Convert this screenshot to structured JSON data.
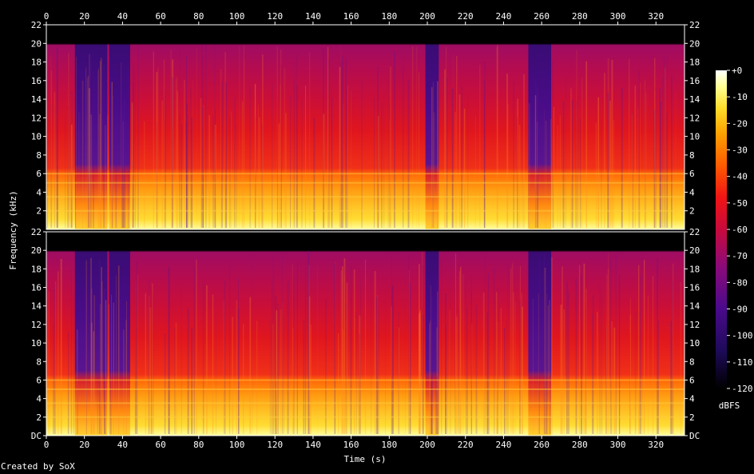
{
  "chart_data": {
    "type": "heatmap",
    "title": "",
    "xlabel": "Time (s)",
    "ylabel": "Frequency (kHz)",
    "x_ticks": [
      "0",
      "20",
      "40",
      "60",
      "80",
      "100",
      "120",
      "140",
      "160",
      "180",
      "200",
      "220",
      "240",
      "260",
      "280",
      "300",
      "320"
    ],
    "xlim": [
      0,
      335
    ],
    "channels": [
      {
        "y_ticks": [
          "2",
          "4",
          "6",
          "8",
          "10",
          "12",
          "14",
          "16",
          "18",
          "20",
          "22"
        ],
        "ylim": [
          0,
          22
        ]
      },
      {
        "y_ticks": [
          "DC",
          "2",
          "4",
          "6",
          "8",
          "10",
          "12",
          "14",
          "16",
          "18",
          "20",
          "22"
        ],
        "ylim": [
          0,
          22
        ]
      }
    ],
    "colorbar": {
      "label": "dBFS",
      "ticks": [
        "+0",
        "-10",
        "-20",
        "-30",
        "-40",
        "-50",
        "-60",
        "-70",
        "-80",
        "-90",
        "-100",
        "-110",
        "-120"
      ],
      "range": [
        -120,
        0
      ]
    },
    "content_cutoff_khz": 20,
    "quiet_segments_s": [
      [
        15,
        32
      ],
      [
        33,
        44
      ],
      [
        199,
        206
      ],
      [
        253,
        265
      ]
    ],
    "colors": {
      "background": "#000000",
      "text": "#ffffff",
      "palette": [
        "#000000",
        "#1e0a5a",
        "#4a0a8c",
        "#8a0a7a",
        "#c80a3c",
        "#f01414",
        "#ff5a00",
        "#ffa000",
        "#ffdc28",
        "#ffff96",
        "#ffffff"
      ]
    }
  },
  "footer": {
    "credit": "Created by SoX"
  }
}
